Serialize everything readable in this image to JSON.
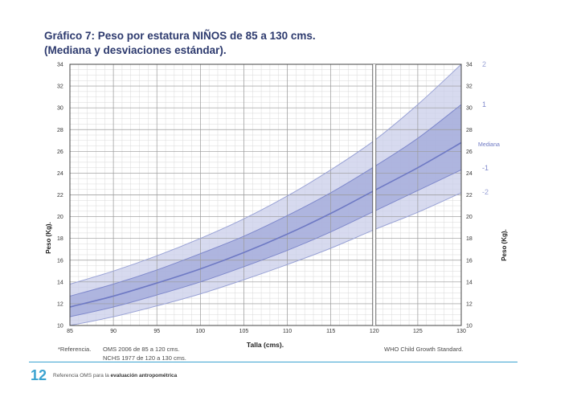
{
  "chart_data": {
    "type": "line",
    "title": "Gráfico 7:  Peso por estatura NIÑOS de  85 a 130 cms.",
    "subtitle": "(Mediana y desviaciones estándar).",
    "xlabel": "Talla (cms).",
    "ylabel": "Peso (Kg).",
    "xlim": [
      85,
      130
    ],
    "ylim": [
      10,
      34
    ],
    "x_ticks": [
      85,
      90,
      95,
      100,
      105,
      110,
      115,
      120,
      125,
      130
    ],
    "y_ticks": [
      10,
      12,
      14,
      16,
      18,
      20,
      22,
      24,
      26,
      28,
      30,
      32,
      34
    ],
    "grid": true,
    "legend_position": "right",
    "x": [
      85,
      90,
      95,
      100,
      105,
      110,
      115,
      120,
      125,
      130
    ],
    "series": [
      {
        "name": "2",
        "values": [
          13.8,
          15.0,
          16.4,
          18.0,
          19.8,
          21.9,
          24.3,
          27.0,
          30.3,
          34.0
        ],
        "color": "#9aa3d6"
      },
      {
        "name": "1",
        "values": [
          12.7,
          13.8,
          15.1,
          16.6,
          18.2,
          20.1,
          22.2,
          24.6,
          27.2,
          30.3
        ],
        "color": "#7f89cc"
      },
      {
        "name": "Mediana",
        "values": [
          11.7,
          12.7,
          13.9,
          15.2,
          16.7,
          18.4,
          20.3,
          22.4,
          24.5,
          26.8
        ],
        "color": "#6e79c4"
      },
      {
        "name": "-1",
        "values": [
          10.8,
          11.7,
          12.8,
          14.0,
          15.4,
          16.9,
          18.6,
          20.5,
          22.4,
          24.3
        ],
        "color": "#7f89cc"
      },
      {
        "name": "-2",
        "values": [
          10.0,
          10.8,
          11.8,
          12.9,
          14.2,
          15.6,
          17.1,
          18.8,
          20.4,
          22.2
        ],
        "color": "#9aa3d6"
      }
    ],
    "annotations": {
      "reference_label": "*Referencia.",
      "ref_line1": "OMS    2006 de   85 a 120 cms.",
      "ref_line2": "NCHS  1977 de 120 a 130 cms.",
      "source": "WHO Child Growth Standard."
    }
  },
  "footer": {
    "page_number": "12",
    "text_prefix": "Referencia OMS para la",
    "text_bold": "evaluación antropométrica"
  }
}
